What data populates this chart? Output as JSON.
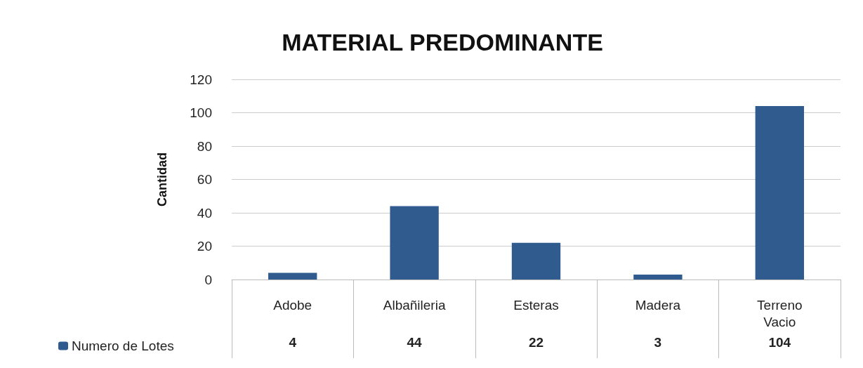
{
  "chart_data": {
    "type": "bar",
    "title": "MATERIAL PREDOMINANTE",
    "ylabel": "Cantidad",
    "categories": [
      "Adobe",
      "Albañileria",
      "Esteras",
      "Madera",
      "Terreno\nVacio"
    ],
    "series": [
      {
        "name": "Numero de Lotes",
        "color": "#2f5b8f",
        "values": [
          4,
          44,
          22,
          3,
          104
        ]
      }
    ],
    "ylim": [
      0,
      120
    ],
    "yticks": [
      0,
      20,
      40,
      60,
      80,
      100,
      120
    ],
    "grid": "y",
    "legend": "bottom left",
    "data_labels": true
  }
}
